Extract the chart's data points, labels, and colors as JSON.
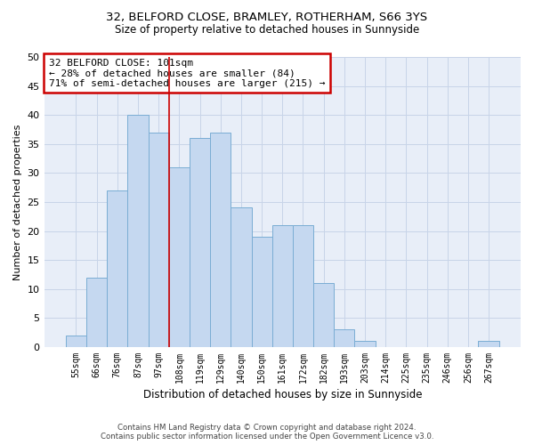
{
  "title1": "32, BELFORD CLOSE, BRAMLEY, ROTHERHAM, S66 3YS",
  "title2": "Size of property relative to detached houses in Sunnyside",
  "xlabel": "Distribution of detached houses by size in Sunnyside",
  "ylabel": "Number of detached properties",
  "categories": [
    "55sqm",
    "66sqm",
    "76sqm",
    "87sqm",
    "97sqm",
    "108sqm",
    "119sqm",
    "129sqm",
    "140sqm",
    "150sqm",
    "161sqm",
    "172sqm",
    "182sqm",
    "193sqm",
    "203sqm",
    "214sqm",
    "225sqm",
    "235sqm",
    "246sqm",
    "256sqm",
    "267sqm"
  ],
  "values": [
    2,
    12,
    27,
    40,
    37,
    31,
    36,
    37,
    24,
    19,
    21,
    21,
    11,
    3,
    1,
    0,
    0,
    0,
    0,
    0,
    1
  ],
  "bar_color": "#c5d8f0",
  "bar_edge_color": "#7aadd4",
  "annotation_title": "32 BELFORD CLOSE: 101sqm",
  "annotation_line1": "← 28% of detached houses are smaller (84)",
  "annotation_line2": "71% of semi-detached houses are larger (215) →",
  "vline_color": "#cc0000",
  "annotation_box_edge": "#cc0000",
  "grid_color": "#c8d4e8",
  "background_color": "#e8eef8",
  "footer1": "Contains HM Land Registry data © Crown copyright and database right 2024.",
  "footer2": "Contains public sector information licensed under the Open Government Licence v3.0.",
  "ylim": [
    0,
    50
  ],
  "yticks": [
    0,
    5,
    10,
    15,
    20,
    25,
    30,
    35,
    40,
    45,
    50
  ],
  "vline_position": 4.5
}
